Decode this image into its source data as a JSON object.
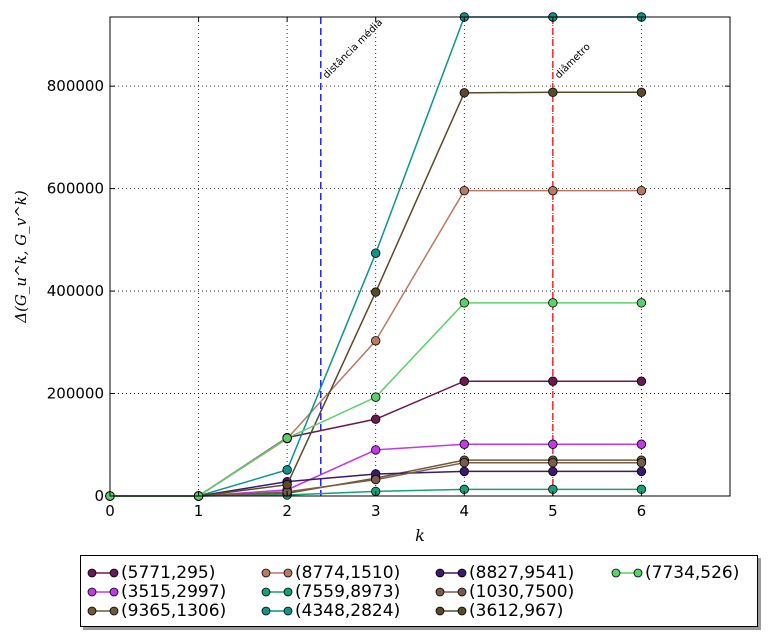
{
  "chart_data": {
    "type": "line",
    "title": "",
    "xlabel": "k",
    "ylabel": "Δ(G_u^k, G_v^k)",
    "xlim": [
      0,
      7
    ],
    "ylim": [
      0,
      935000
    ],
    "x_ticks": [
      0,
      1,
      2,
      3,
      4,
      5,
      6
    ],
    "y_ticks": [
      0,
      200000,
      400000,
      600000,
      800000
    ],
    "grid": true,
    "legend_position": "bottom, below plot",
    "x": [
      0,
      1,
      2,
      3,
      4,
      5,
      6
    ],
    "series": [
      {
        "name": "(5771,295)",
        "color": "#6b1a4e",
        "values": [
          0,
          0,
          114000,
          150000,
          224000,
          224000,
          224000
        ]
      },
      {
        "name": "(3515,2997)",
        "color": "#c03ae6",
        "values": [
          0,
          0,
          12000,
          90000,
          101000,
          101000,
          101000
        ]
      },
      {
        "name": "(9365,1306)",
        "color": "#6e5a35",
        "values": [
          0,
          0,
          5000,
          35000,
          70000,
          70000,
          70000
        ]
      },
      {
        "name": "(8774,1510)",
        "color": "#b87a62",
        "values": [
          0,
          0,
          112000,
          303000,
          596000,
          596000,
          596000
        ]
      },
      {
        "name": "(7559,8973)",
        "color": "#14a07a",
        "values": [
          0,
          0,
          2000,
          9000,
          13000,
          13000,
          13000
        ]
      },
      {
        "name": "(4348,2824)",
        "color": "#0f9488",
        "values": [
          0,
          0,
          51000,
          474000,
          935000,
          935000,
          935000
        ]
      },
      {
        "name": "(8827,9541)",
        "color": "#3a1a6a",
        "values": [
          0,
          0,
          28000,
          43000,
          48000,
          48000,
          48000
        ]
      },
      {
        "name": "(1030,7500)",
        "color": "#7a5a48",
        "values": [
          0,
          0,
          8000,
          32000,
          65000,
          65000,
          65000
        ]
      },
      {
        "name": "(3612,967)",
        "color": "#5a4a28",
        "values": [
          0,
          0,
          22000,
          398000,
          787000,
          788000,
          788000
        ]
      },
      {
        "name": "(7734,526)",
        "color": "#5ad06a",
        "values": [
          0,
          0,
          113000,
          193000,
          377000,
          377000,
          377000
        ]
      }
    ],
    "annotations": [
      {
        "text": "distância média",
        "x": 2.38,
        "color": "#0000ff"
      },
      {
        "text": "diâmetro",
        "x": 5,
        "color": "#ff0000"
      }
    ]
  }
}
